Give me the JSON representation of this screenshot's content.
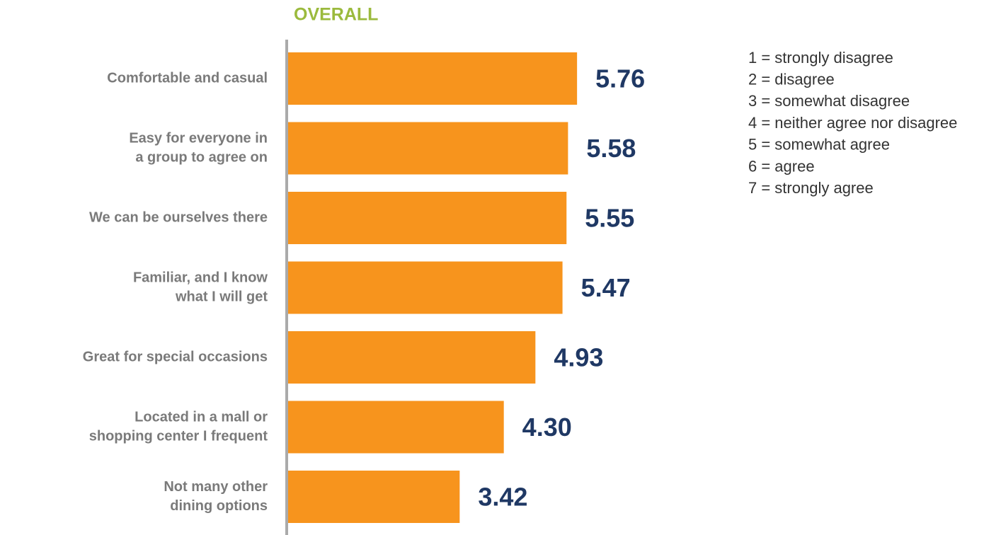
{
  "chart_data": {
    "type": "bar",
    "orientation": "horizontal",
    "title": "OVERALL",
    "categories": [
      [
        "Comfortable and casual"
      ],
      [
        "Easy for everyone in",
        "a group to agree on"
      ],
      [
        "We can be ourselves there"
      ],
      [
        "Familiar, and I know",
        "what I will get"
      ],
      [
        "Great for special occasions"
      ],
      [
        "Located in a mall or",
        "shopping center I frequent"
      ],
      [
        "Not many other",
        "dining options"
      ]
    ],
    "values": [
      5.76,
      5.58,
      5.55,
      5.47,
      4.93,
      4.3,
      3.42
    ],
    "value_labels": [
      "5.76",
      "5.58",
      "5.55",
      "5.47",
      "4.93",
      "4.30",
      "3.42"
    ],
    "color": "#f7941d",
    "xlim": [
      0,
      7
    ],
    "scale_key": [
      "1 = strongly disagree",
      "2 = disagree",
      "3 = somewhat disagree",
      "4 = neither agree nor disagree",
      "5 = somewhat agree",
      "6 = agree",
      "7 = strongly agree"
    ]
  }
}
